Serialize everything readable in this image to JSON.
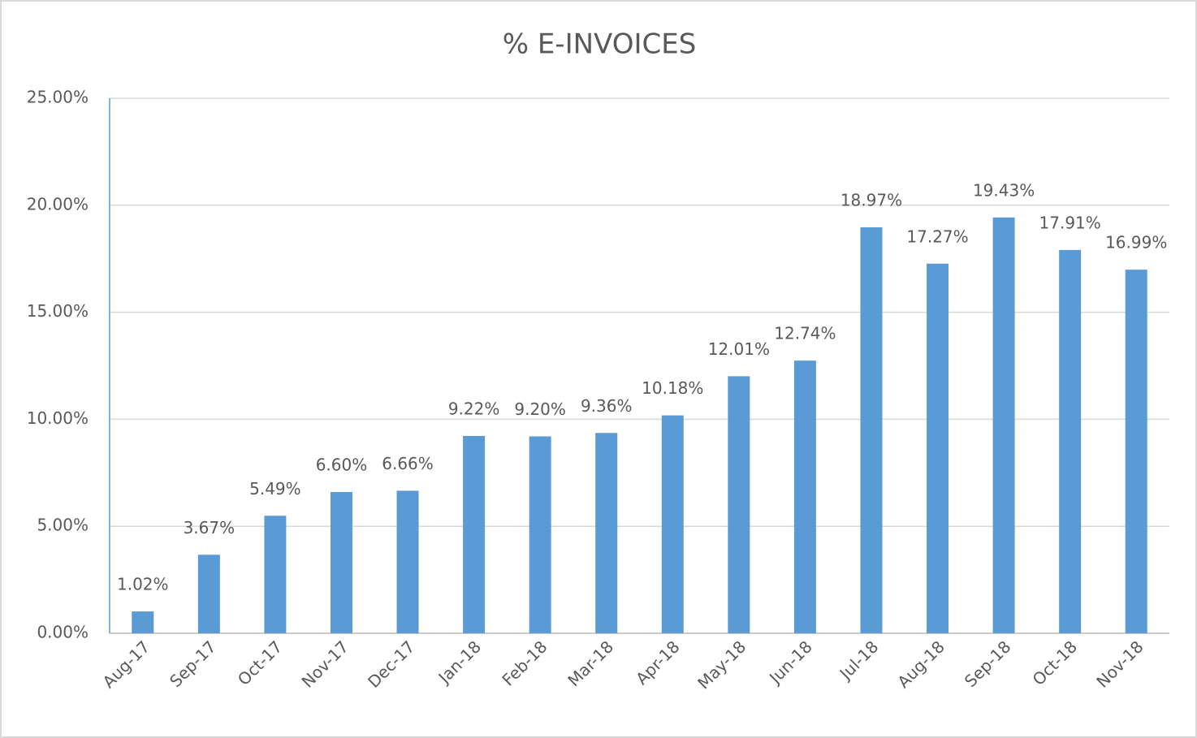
{
  "chart_data": {
    "type": "bar",
    "title": "% E-INVOICES",
    "categories": [
      "Aug-17",
      "Sep-17",
      "Oct-17",
      "Nov-17",
      "Dec-17",
      "Jan-18",
      "Feb-18",
      "Mar-18",
      "Apr-18",
      "May-18",
      "Jun-18",
      "Jul-18",
      "Aug-18",
      "Sep-18",
      "Oct-18",
      "Nov-18"
    ],
    "values": [
      1.02,
      3.67,
      5.49,
      6.6,
      6.66,
      9.22,
      9.2,
      9.36,
      10.18,
      12.01,
      12.74,
      18.97,
      17.27,
      19.43,
      17.91,
      16.99
    ],
    "value_labels": [
      "1.02%",
      "3.67%",
      "5.49%",
      "6.60%",
      "6.66%",
      "9.22%",
      "9.20%",
      "9.36%",
      "10.18%",
      "12.01%",
      "12.74%",
      "18.97%",
      "17.27%",
      "19.43%",
      "17.91%",
      "16.99%"
    ],
    "color": "#5b9bd5",
    "ylim": [
      0,
      25
    ],
    "yticks": [
      {
        "value": 0,
        "label": "0.00%"
      },
      {
        "value": 5,
        "label": "5.00%"
      },
      {
        "value": 10,
        "label": "10.00%"
      },
      {
        "value": 15,
        "label": "15.00%"
      },
      {
        "value": 20,
        "label": "20.00%"
      },
      {
        "value": 25,
        "label": "25.00%"
      }
    ],
    "grid": true
  }
}
